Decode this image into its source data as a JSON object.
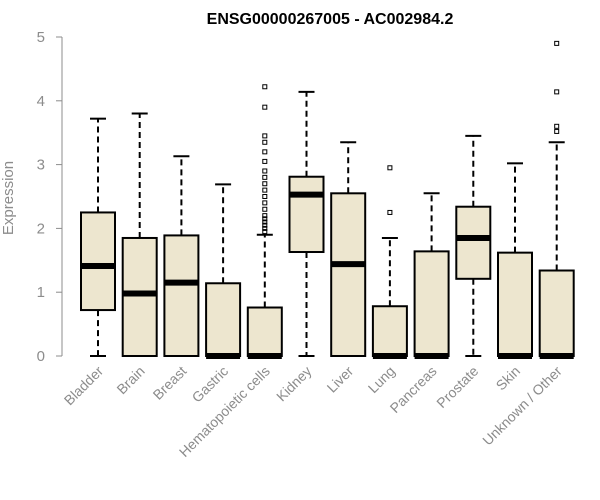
{
  "chart_data": {
    "type": "boxplot",
    "title": "ENSG00000267005 - AC002984.2",
    "xlabel": "",
    "ylabel": "Expression",
    "ylim": [
      0,
      5
    ],
    "yticks": [
      0,
      1,
      2,
      3,
      4,
      5
    ],
    "grid": false,
    "legend": "none",
    "colors": {
      "box_fill": "#ede6cf",
      "box_stroke": "#000000",
      "axis": "#8c8c8c",
      "median": "#000000"
    },
    "categories": [
      "Bladder",
      "Brain",
      "Breast",
      "Gastric",
      "Hematopoietic cells",
      "Kidney",
      "Liver",
      "Lung",
      "Pancreas",
      "Prostate",
      "Skin",
      "Unknown / Other"
    ],
    "boxes": [
      {
        "q1": 0.72,
        "median": 1.41,
        "q3": 2.25,
        "whisker_low": 0,
        "whisker_high": 3.72,
        "outliers": []
      },
      {
        "q1": 0,
        "median": 0.98,
        "q3": 1.85,
        "whisker_low": 0,
        "whisker_high": 3.8,
        "outliers": []
      },
      {
        "q1": 0,
        "median": 1.15,
        "q3": 1.89,
        "whisker_low": 0,
        "whisker_high": 3.13,
        "outliers": []
      },
      {
        "q1": 0,
        "median": 0,
        "q3": 1.14,
        "whisker_low": 0,
        "whisker_high": 2.69,
        "outliers": []
      },
      {
        "q1": 0,
        "median": 0,
        "q3": 0.76,
        "whisker_low": 0,
        "whisker_high": 1.9,
        "outliers": [
          1.95,
          2.0,
          2.05,
          2.1,
          2.15,
          2.2,
          2.3,
          2.4,
          2.5,
          2.6,
          2.7,
          2.8,
          2.9,
          3.05,
          3.2,
          3.35,
          3.45,
          3.9,
          4.22
        ]
      },
      {
        "q1": 1.63,
        "median": 2.53,
        "q3": 2.81,
        "whisker_low": 0,
        "whisker_high": 4.14,
        "outliers": []
      },
      {
        "q1": 0,
        "median": 1.44,
        "q3": 2.55,
        "whisker_low": 0,
        "whisker_high": 3.35,
        "outliers": []
      },
      {
        "q1": 0,
        "median": 0,
        "q3": 0.78,
        "whisker_low": 0,
        "whisker_high": 1.85,
        "outliers": [
          2.25,
          2.95
        ]
      },
      {
        "q1": 0,
        "median": 0,
        "q3": 1.64,
        "whisker_low": 0,
        "whisker_high": 2.55,
        "outliers": []
      },
      {
        "q1": 1.21,
        "median": 1.85,
        "q3": 2.34,
        "whisker_low": 0,
        "whisker_high": 3.45,
        "outliers": []
      },
      {
        "q1": 0,
        "median": 0,
        "q3": 1.62,
        "whisker_low": 0,
        "whisker_high": 3.02,
        "outliers": []
      },
      {
        "q1": 0,
        "median": 0,
        "q3": 1.34,
        "whisker_low": 0,
        "whisker_high": 3.35,
        "outliers": [
          3.52,
          3.6,
          4.14,
          4.9
        ]
      }
    ]
  }
}
